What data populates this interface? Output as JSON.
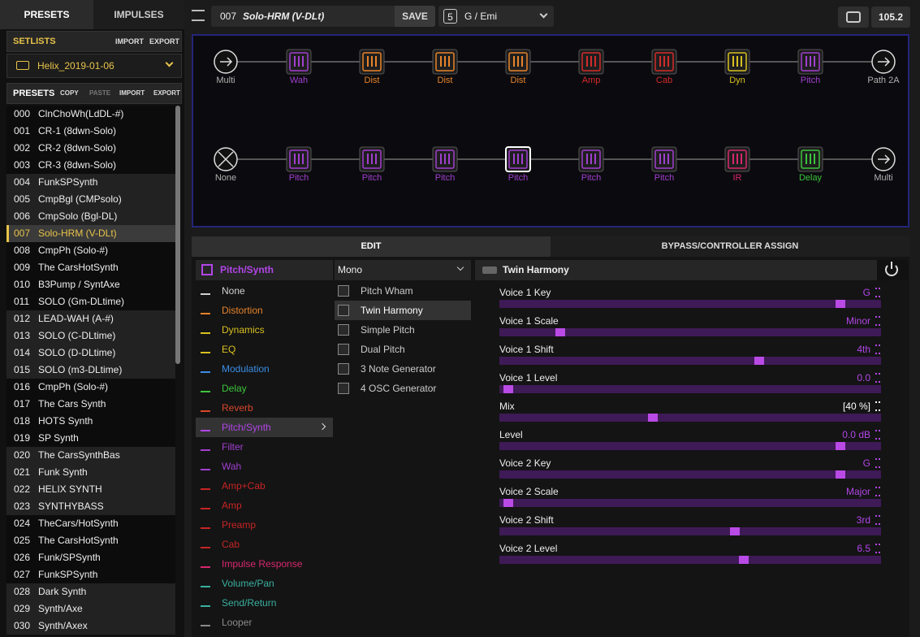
{
  "tabs": [
    "PRESETS",
    "IMPULSES"
  ],
  "setlists": {
    "title": "SETLISTS",
    "actions": [
      "IMPORT",
      "EXPORT"
    ],
    "selected": "Helix_2019-01-06"
  },
  "presets": {
    "title": "PRESETS",
    "actions": [
      "COPY",
      "PASTE",
      "IMPORT",
      "EXPORT"
    ],
    "items": [
      {
        "number": "000",
        "name": "ClnChoWh(LdDL-#)"
      },
      {
        "number": "001",
        "name": "CR-1 (8dwn-Solo)"
      },
      {
        "number": "002",
        "name": "CR-2 (8dwn-Solo)"
      },
      {
        "number": "003",
        "name": "CR-3 (8dwn-Solo)"
      },
      {
        "number": "004",
        "name": "FunkSPSynth"
      },
      {
        "number": "005",
        "name": "CmpBgl (CMPsolo)"
      },
      {
        "number": "006",
        "name": "CmpSolo (Bgl-DL)"
      },
      {
        "number": "007",
        "name": "Solo-HRM (V-DLt)",
        "selected": true
      },
      {
        "number": "008",
        "name": "CmpPh (Solo-#)"
      },
      {
        "number": "009",
        "name": "The CarsHotSynth"
      },
      {
        "number": "010",
        "name": "B3Pump / SyntAxe"
      },
      {
        "number": "011",
        "name": "SOLO (Gm-DLtime)"
      },
      {
        "number": "012",
        "name": "LEAD-WAH (A-#)"
      },
      {
        "number": "013",
        "name": "SOLO (C-DLtime)"
      },
      {
        "number": "014",
        "name": "SOLO (D-DLtime)"
      },
      {
        "number": "015",
        "name": "SOLO (m3-DLtime)"
      },
      {
        "number": "016",
        "name": "CmpPh (Solo-#)"
      },
      {
        "number": "017",
        "name": "The Cars Synth"
      },
      {
        "number": "018",
        "name": "HOTS Synth"
      },
      {
        "number": "019",
        "name": "SP Synth"
      },
      {
        "number": "020",
        "name": "The CarsSynthBas"
      },
      {
        "number": "021",
        "name": "Funk Synth"
      },
      {
        "number": "022",
        "name": "HELIX SYNTH"
      },
      {
        "number": "023",
        "name": "SYNTHYBASS"
      },
      {
        "number": "024",
        "name": "TheCars/HotSynth"
      },
      {
        "number": "025",
        "name": "The CarsHotSynth"
      },
      {
        "number": "026",
        "name": "Funk/SPSynth"
      },
      {
        "number": "027",
        "name": "FunkSPSynth"
      },
      {
        "number": "028",
        "name": "Dark Synth"
      },
      {
        "number": "029",
        "name": "Synth/Axe"
      },
      {
        "number": "030",
        "name": "Synth/Axex"
      }
    ]
  },
  "toolbar": {
    "preset_number": "007",
    "preset_name": "Solo-HRM (V-DLt)",
    "save": "SAVE",
    "snapshot": "5",
    "key": "G / Emi",
    "tempo": "105.2"
  },
  "signal_flow": {
    "paths": [
      {
        "blocks": [
          {
            "label": "Multi",
            "color": "#b0b0b0"
          },
          {
            "label": "Wah",
            "color": "#a23fd0"
          },
          {
            "label": "Dist",
            "color": "#e8832a"
          },
          {
            "label": "Dist",
            "color": "#e8832a"
          },
          {
            "label": "Dist",
            "color": "#e8832a"
          },
          {
            "label": "Amp",
            "color": "#d42a2a"
          },
          {
            "label": "Cab",
            "color": "#d42a2a"
          },
          {
            "label": "Dyn",
            "color": "#d8c020"
          },
          {
            "label": "Pitch",
            "color": "#a23fd0"
          },
          {
            "label": "Path 2A",
            "color": "#b0b0b0"
          }
        ]
      },
      {
        "blocks": [
          {
            "label": "None",
            "color": "#b0b0b0"
          },
          {
            "label": "Pitch",
            "color": "#a23fd0"
          },
          {
            "label": "Pitch",
            "color": "#a23fd0"
          },
          {
            "label": "Pitch",
            "color": "#a23fd0"
          },
          {
            "label": "Pitch",
            "color": "#a23fd0",
            "selected": true
          },
          {
            "label": "Pitch",
            "color": "#a23fd0"
          },
          {
            "label": "Pitch",
            "color": "#a23fd0"
          },
          {
            "label": "IR",
            "color": "#d8286e"
          },
          {
            "label": "Delay",
            "color": "#3cc43c"
          },
          {
            "label": "Multi",
            "color": "#b0b0b0"
          }
        ]
      }
    ]
  },
  "edit": {
    "tabs": [
      "EDIT",
      "BYPASS/CONTROLLER ASSIGN"
    ],
    "category_header": "Pitch/Synth",
    "categories": [
      {
        "label": "None",
        "color": "#d0d0d0"
      },
      {
        "label": "Distortion",
        "color": "#e8832a"
      },
      {
        "label": "Dynamics",
        "color": "#d8c020"
      },
      {
        "label": "EQ",
        "color": "#d8c020"
      },
      {
        "label": "Modulation",
        "color": "#3a8ee6"
      },
      {
        "label": "Delay",
        "color": "#3cc43c"
      },
      {
        "label": "Reverb",
        "color": "#d8462a"
      },
      {
        "label": "Pitch/Synth",
        "color": "#b245e8",
        "selected": true
      },
      {
        "label": "Filter",
        "color": "#a23fd0"
      },
      {
        "label": "Wah",
        "color": "#a23fd0"
      },
      {
        "label": "Amp+Cab",
        "color": "#c82424"
      },
      {
        "label": "Amp",
        "color": "#c82424"
      },
      {
        "label": "Preamp",
        "color": "#c82424"
      },
      {
        "label": "Cab",
        "color": "#c82424"
      },
      {
        "label": "Impulse Response",
        "color": "#d8286e"
      },
      {
        "label": "Volume/Pan",
        "color": "#3ab0a0"
      },
      {
        "label": "Send/Return",
        "color": "#3ab0a0"
      },
      {
        "label": "Looper",
        "color": "#8a8a8a"
      }
    ],
    "model_filter": "Mono",
    "models": [
      {
        "label": "Pitch Wham"
      },
      {
        "label": "Twin Harmony",
        "selected": true
      },
      {
        "label": "Simple Pitch"
      },
      {
        "label": "Dual Pitch"
      },
      {
        "label": "3 Note Generator"
      },
      {
        "label": "4 OSC Generator"
      }
    ],
    "model_header": "Twin Harmony",
    "params": [
      {
        "label": "Voice 1 Key",
        "value": "G",
        "position": 0.905
      },
      {
        "label": "Voice 1 Scale",
        "value": "Minor",
        "position": 0.15
      },
      {
        "label": "Voice 1 Shift",
        "value": "4th",
        "position": 0.685
      },
      {
        "label": "Voice 1 Level",
        "value": "0.0",
        "position": 0.01
      },
      {
        "label": "Mix",
        "value": "[40 %]",
        "position": 0.4,
        "highlight": true
      },
      {
        "label": "Level",
        "value": "0.0 dB",
        "position": 0.905
      },
      {
        "label": "Voice 2 Key",
        "value": "G",
        "position": 0.905
      },
      {
        "label": "Voice 2 Scale",
        "value": "Major",
        "position": 0.01
      },
      {
        "label": "Voice 2 Shift",
        "value": "3rd",
        "position": 0.62
      },
      {
        "label": "Voice 2 Level",
        "value": "6.5",
        "position": 0.645
      }
    ]
  }
}
